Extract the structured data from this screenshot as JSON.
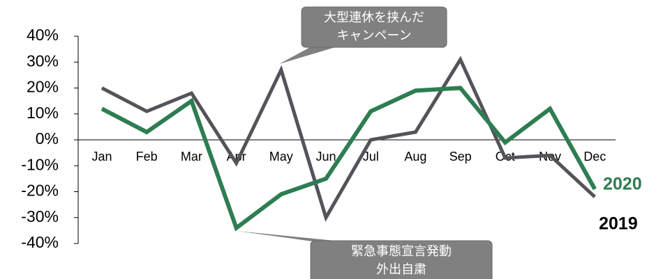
{
  "chart_data": {
    "type": "line",
    "categories": [
      "Jan",
      "Feb",
      "Mar",
      "Apr",
      "May",
      "Jun",
      "Jul",
      "Aug",
      "Sep",
      "Oct",
      "Nov",
      "Dec"
    ],
    "series": [
      {
        "name": "2019",
        "color": "#55535a",
        "values": [
          20,
          11,
          18,
          -9,
          27,
          -30,
          0,
          3,
          31,
          -7,
          -6,
          -22
        ]
      },
      {
        "name": "2020",
        "color": "#2e7d52",
        "values": [
          12,
          3,
          15,
          -34,
          -21,
          -15,
          11,
          19,
          20,
          -1,
          12,
          -19
        ]
      }
    ],
    "ylim": [
      -40,
      40
    ],
    "yticks": [
      {
        "value": 40,
        "label": "40%"
      },
      {
        "value": 30,
        "label": "30%"
      },
      {
        "value": 20,
        "label": "20%"
      },
      {
        "value": 10,
        "label": "10%"
      },
      {
        "value": 0,
        "label": "0%"
      },
      {
        "value": -10,
        "label": "-10%"
      },
      {
        "value": -20,
        "label": "-20%"
      },
      {
        "value": -30,
        "label": "-30%"
      },
      {
        "value": -40,
        "label": "-40%"
      }
    ],
    "annotations": [
      {
        "lines": [
          "大型連休を挟んだ",
          "キャンペーン"
        ]
      },
      {
        "lines": [
          "緊急事態宣言発動",
          "外出自粛"
        ]
      }
    ]
  }
}
